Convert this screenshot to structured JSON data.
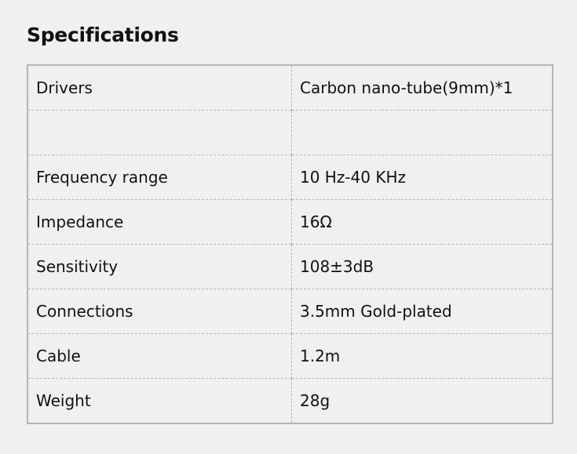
{
  "title": "Specifications",
  "rows": [
    {
      "label": "Drivers",
      "value": "Carbon nano-tube(9mm)*1"
    },
    {
      "label": "",
      "value": ""
    },
    {
      "label": "Frequency range",
      "value": "10 Hz-40 KHz"
    },
    {
      "label": "Impedance",
      "value": "16Ω"
    },
    {
      "label": "Sensitivity",
      "value": "108±3dB"
    },
    {
      "label": "Connections",
      "value": "3.5mm Gold-plated"
    },
    {
      "label": "Cable",
      "value": "1.2m"
    },
    {
      "label": "Weight",
      "value": "28g"
    }
  ]
}
